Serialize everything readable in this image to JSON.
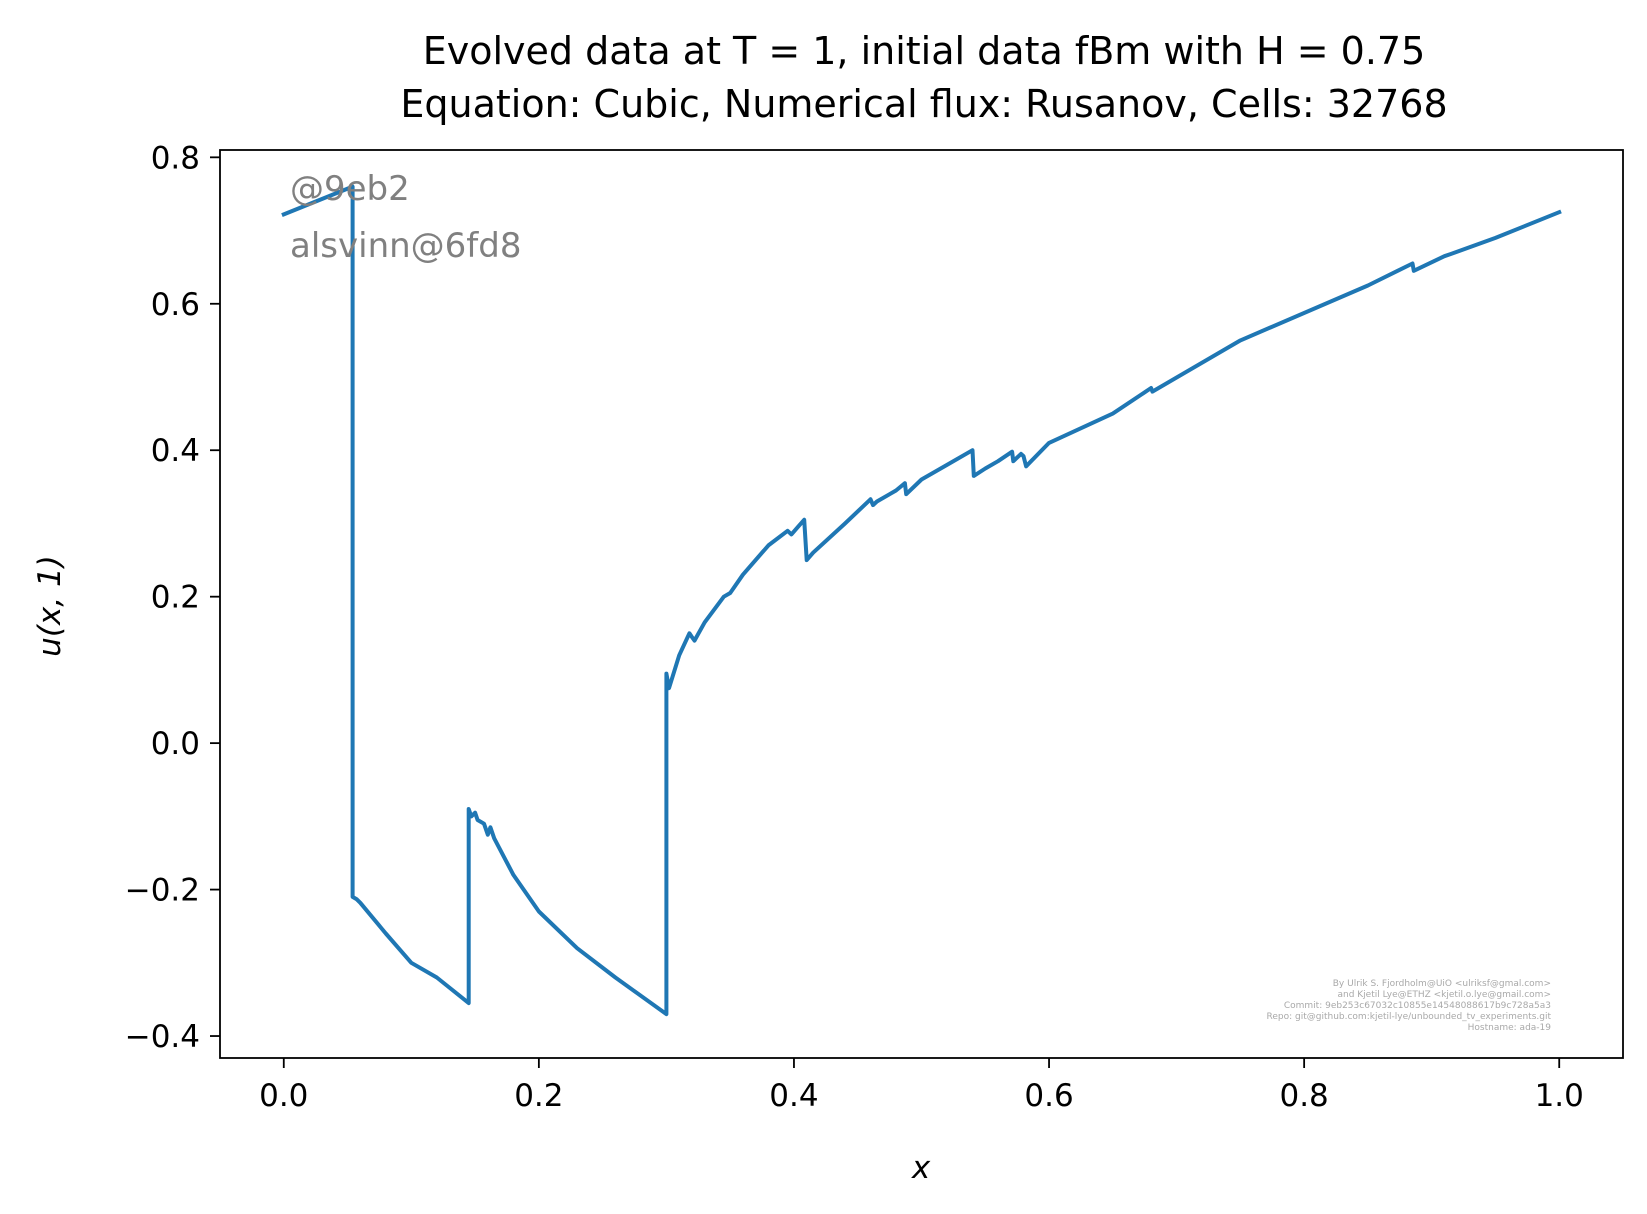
{
  "chart_data": {
    "type": "line",
    "title_line1": "Evolved data at T = 1, initial data fBm with H = 0.75",
    "title_line2": "Equation: Cubic, Numerical flux: Rusanov, Cells: 32768",
    "xlabel": "x",
    "ylabel": "u(x, 1)",
    "xlim": [
      -0.05,
      1.05
    ],
    "ylim": [
      -0.43,
      0.81
    ],
    "xticks": [
      0.0,
      0.2,
      0.4,
      0.6,
      0.8,
      1.0
    ],
    "xtick_labels": [
      "0.0",
      "0.2",
      "0.4",
      "0.6",
      "0.8",
      "1.0"
    ],
    "yticks": [
      -0.4,
      -0.2,
      0.0,
      0.2,
      0.4,
      0.6,
      0.8
    ],
    "ytick_labels": [
      "−0.4",
      "−0.2",
      "0.0",
      "0.2",
      "0.4",
      "0.6",
      "0.8"
    ],
    "grid": false,
    "legend": "none",
    "series": [
      {
        "color": "#1f77b4",
        "x": [
          0.0,
          0.054,
          0.054,
          0.057,
          0.06,
          0.08,
          0.1,
          0.12,
          0.145,
          0.145,
          0.147,
          0.15,
          0.152,
          0.157,
          0.16,
          0.162,
          0.165,
          0.18,
          0.2,
          0.23,
          0.26,
          0.3,
          0.3,
          0.302,
          0.31,
          0.318,
          0.32,
          0.322,
          0.33,
          0.345,
          0.35,
          0.36,
          0.38,
          0.395,
          0.398,
          0.403,
          0.408,
          0.41,
          0.415,
          0.44,
          0.46,
          0.462,
          0.465,
          0.475,
          0.48,
          0.487,
          0.488,
          0.5,
          0.52,
          0.54,
          0.541,
          0.55,
          0.56,
          0.571,
          0.572,
          0.578,
          0.58,
          0.582,
          0.6,
          0.65,
          0.68,
          0.681,
          0.75,
          0.85,
          0.885,
          0.886,
          0.91,
          0.915,
          0.95,
          1.0
        ],
        "y": [
          0.722,
          0.76,
          -0.21,
          -0.213,
          -0.218,
          -0.26,
          -0.3,
          -0.32,
          -0.355,
          -0.09,
          -0.1,
          -0.095,
          -0.105,
          -0.11,
          -0.125,
          -0.115,
          -0.13,
          -0.18,
          -0.23,
          -0.28,
          -0.32,
          -0.37,
          0.095,
          0.075,
          0.12,
          0.15,
          0.145,
          0.14,
          0.165,
          0.2,
          0.205,
          0.23,
          0.27,
          0.29,
          0.285,
          0.295,
          0.305,
          0.25,
          0.26,
          0.3,
          0.333,
          0.325,
          0.33,
          0.34,
          0.345,
          0.355,
          0.34,
          0.36,
          0.38,
          0.4,
          0.365,
          0.375,
          0.385,
          0.398,
          0.385,
          0.395,
          0.392,
          0.378,
          0.41,
          0.45,
          0.485,
          0.48,
          0.55,
          0.625,
          0.655,
          0.645,
          0.665,
          0.668,
          0.69,
          0.725
        ]
      }
    ]
  },
  "watermark": {
    "line1": "@9eb2",
    "line2": "alsvinn@6fd8"
  },
  "credits": [
    "By Ulrik S. Fjordholm@UiO <ulriksf@gmal.com>",
    "and Kjetil Lye@ETHZ <kjetil.o.lye@gmail.com>",
    "Commit: 9eb253c67032c10855e14548088617b9c728a5a3",
    "Repo: git@github.com:kjetil-lye/unbounded_tv_experiments.git",
    "Hostname: ada-19"
  ]
}
